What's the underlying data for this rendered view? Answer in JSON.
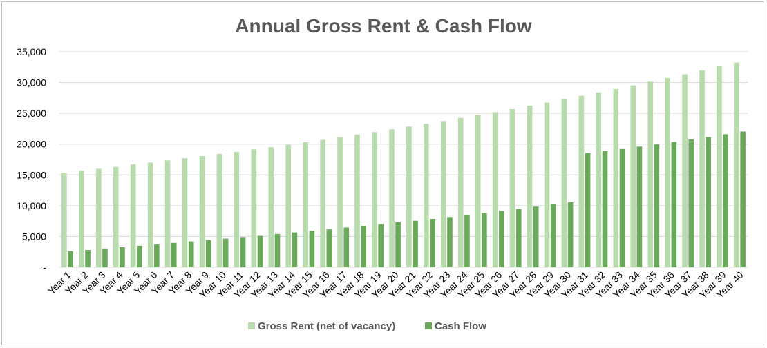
{
  "chart_data": {
    "type": "bar",
    "title": "Annual Gross Rent & Cash Flow",
    "xlabel": "",
    "ylabel": "",
    "ylim": [
      0,
      35000
    ],
    "yticks": [
      "-",
      "5,000",
      "10,000",
      "15,000",
      "20,000",
      "25,000",
      "30,000",
      "35,000"
    ],
    "ytick_values": [
      0,
      5000,
      10000,
      15000,
      20000,
      25000,
      30000,
      35000
    ],
    "grid": true,
    "legend_position": "bottom",
    "categories": [
      "Year 1",
      "Year 2",
      "Year 3",
      "Year 4",
      "Year 5",
      "Year 6",
      "Year 7",
      "Year 8",
      "Year 9",
      "Year 10",
      "Year 11",
      "Year 12",
      "Year 13",
      "Year 14",
      "Year 15",
      "Year 16",
      "Year 17",
      "Year 18",
      "Year 19",
      "Year 20",
      "Year 21",
      "Year 22",
      "Year 23",
      "Year 24",
      "Year 25",
      "Year 26",
      "Year 27",
      "Year 28",
      "Year 29",
      "Year 30",
      "Year 31",
      "Year 32",
      "Year 33",
      "Year 34",
      "Year 35",
      "Year 36",
      "Year 37",
      "Year 38",
      "Year 39",
      "Year 40"
    ],
    "series": [
      {
        "name": "Gross Rent (net of vacancy)",
        "color": "#b7dbad",
        "values": [
          15350,
          15700,
          16000,
          16300,
          16700,
          17000,
          17350,
          17700,
          18050,
          18400,
          18750,
          19150,
          19500,
          19900,
          20300,
          20700,
          21100,
          21550,
          21950,
          22400,
          22850,
          23300,
          23750,
          24250,
          24700,
          25200,
          25700,
          26250,
          26750,
          27300,
          27850,
          28400,
          28950,
          29550,
          30150,
          30750,
          31350,
          32000,
          32650,
          33250
        ]
      },
      {
        "name": "Cash Flow",
        "color": "#6aa85a",
        "values": [
          2600,
          2800,
          3050,
          3250,
          3500,
          3700,
          3950,
          4200,
          4400,
          4650,
          4900,
          5100,
          5400,
          5650,
          5900,
          6150,
          6450,
          6700,
          7000,
          7300,
          7550,
          7850,
          8150,
          8500,
          8800,
          9150,
          9450,
          9850,
          10200,
          10550,
          18550,
          18850,
          19200,
          19600,
          19950,
          20350,
          20750,
          21150,
          21600,
          22050
        ]
      }
    ]
  }
}
